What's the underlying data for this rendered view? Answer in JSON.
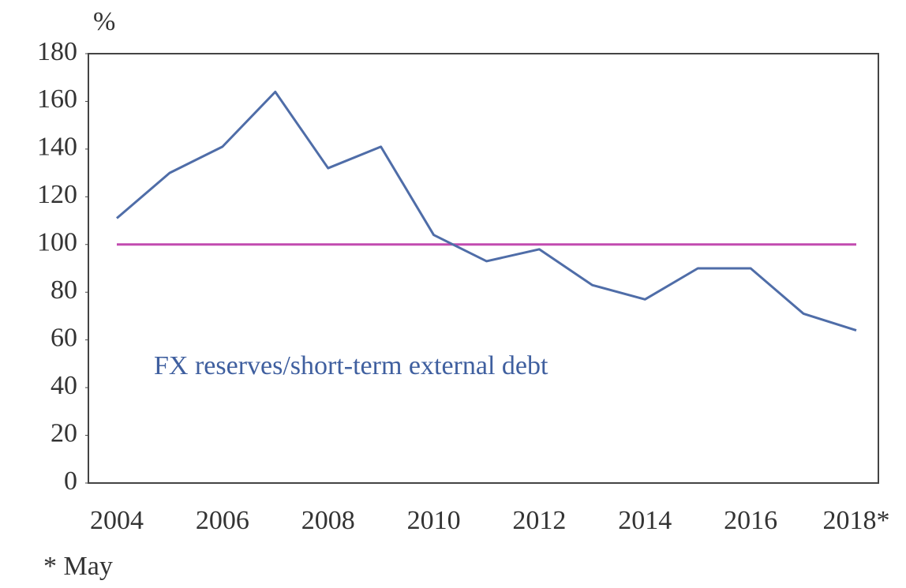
{
  "chart_data": {
    "type": "line",
    "y_label": "%",
    "annotation": "FX reserves/short-term external debt",
    "footnote": "* May",
    "categories": [
      "2004",
      null,
      "2006",
      null,
      "2008",
      null,
      "2010",
      null,
      "2012",
      null,
      "2014",
      null,
      "2016",
      null,
      "2018*"
    ],
    "series": [
      {
        "name": "FX reserves/short-term external debt",
        "color": "#4f6da8",
        "values": [
          111,
          130,
          141,
          164,
          132,
          141,
          104,
          93,
          98,
          83,
          77,
          90,
          90,
          71,
          64
        ]
      }
    ],
    "reference_line": {
      "value": 100,
      "color": "#c24bb0"
    },
    "ylim": [
      0,
      180
    ],
    "yticks": [
      0,
      20,
      40,
      60,
      80,
      100,
      120,
      140,
      160,
      180
    ]
  }
}
